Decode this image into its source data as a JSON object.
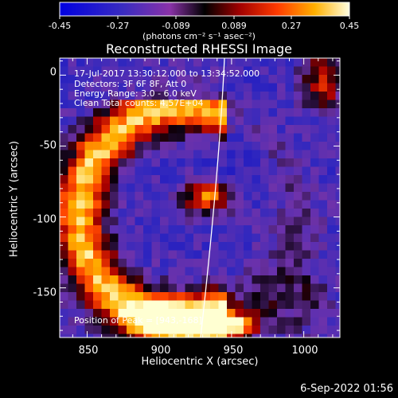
{
  "title": "Reconstructed RHESSI Image",
  "colorbar": {
    "tick_labels": [
      "-0.45",
      "-0.27",
      "-0.089",
      "0.089",
      "0.27",
      "0.45"
    ],
    "unit_label": "(photons cm⁻² s⁻¹ asec⁻²)",
    "range": [
      -0.45,
      0.45
    ]
  },
  "axes": {
    "xlabel": "Heliocentric X (arcsec)",
    "ylabel": "Heliocentric Y (arcsec)",
    "xticks": [
      "850",
      "900",
      "950",
      "1000"
    ],
    "yticks": [
      "0",
      "-50",
      "-100",
      "-150"
    ],
    "xlim": [
      831,
      1025
    ],
    "ylim": [
      -185,
      12
    ]
  },
  "info_lines": [
    "17-Jul-2017 13:30:12.000 to 13:34:52.000",
    "Detectors: 3F 6F 8F, Att 0",
    "Energy Range: 3.0 - 6.0 keV",
    "Clean      Total counts: 4.57E+04"
  ],
  "peak_label": "Position of Peak = [943,-168]",
  "footer_date": "6-Sep-2022 01:56",
  "colors": {
    "background": "#000000",
    "colorbar_low": "#0000ff",
    "colorbar_high": "#ffffe0"
  }
}
